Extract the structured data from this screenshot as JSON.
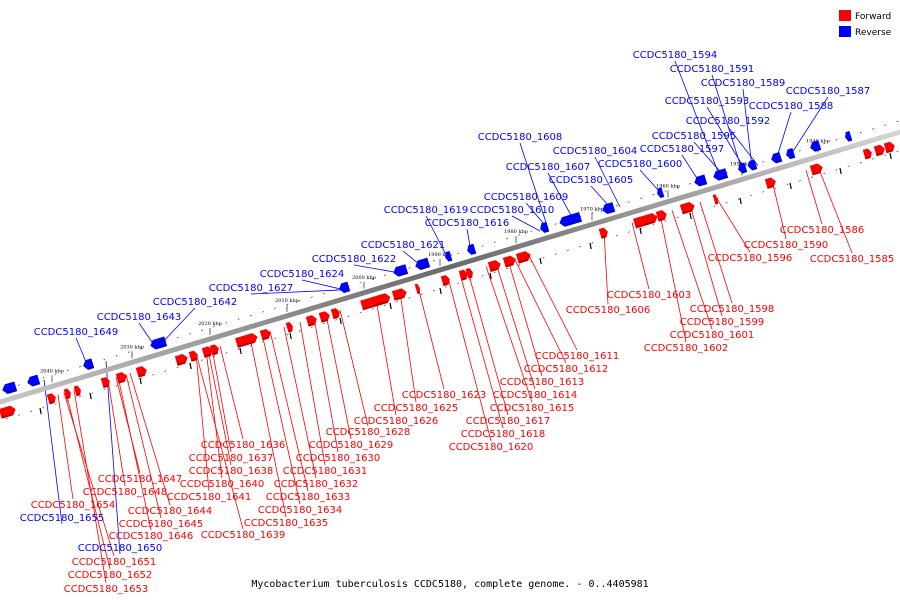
{
  "caption": "Mycobacterium tuberculosis CCDC5180, complete genome. - 0..4405981",
  "legend": {
    "forward": {
      "label": "Forward",
      "color": "#ff0000"
    },
    "reverse": {
      "label": "Reverse",
      "color": "#0000ff"
    }
  },
  "axis": {
    "unit": "kbp",
    "ticks": [
      1940,
      1950,
      1960,
      1970,
      1980,
      1990,
      2000,
      2010,
      2020,
      2030,
      2040
    ]
  },
  "forward_genes": [
    "CCDC5180_1585",
    "CCDC5180_1586",
    "CCDC5180_1590",
    "CCDC5180_1596",
    "CCDC5180_1598",
    "CCDC5180_1599",
    "CCDC5180_1601",
    "CCDC5180_1602",
    "CCDC5180_1603",
    "CCDC5180_1606",
    "CCDC5180_1611",
    "CCDC5180_1612",
    "CCDC5180_1613",
    "CCDC5180_1614",
    "CCDC5180_1615",
    "CCDC5180_1617",
    "CCDC5180_1618",
    "CCDC5180_1620",
    "CCDC5180_1623",
    "CCDC5180_1625",
    "CCDC5180_1626",
    "CCDC5180_1628",
    "CCDC5180_1629",
    "CCDC5180_1630",
    "CCDC5180_1631",
    "CCDC5180_1632",
    "CCDC5180_1633",
    "CCDC5180_1634",
    "CCDC5180_1635",
    "CCDC5180_1636",
    "CCDC5180_1637",
    "CCDC5180_1638",
    "CCDC5180_1640",
    "CCDC5180_1641",
    "CCDC5180_1639",
    "CCDC5180_1647",
    "CCDC5180_1648",
    "CCDC5180_1644",
    "CCDC5180_1645",
    "CCDC5180_1646",
    "CCDC5180_1654",
    "CCDC5180_1651",
    "CCDC5180_1652",
    "CCDC5180_1653"
  ],
  "reverse_genes": [
    "CCDC5180_1594",
    "CCDC5180_1591",
    "CCDC5180_1589",
    "CCDC5180_1587",
    "CCDC5180_1593",
    "CCDC5180_1588",
    "CCDC5180_1592",
    "CCDC5180_1595",
    "CCDC5180_1597",
    "CCDC5180_1608",
    "CCDC5180_1604",
    "CCDC5180_1607",
    "CCDC5180_1600",
    "CCDC5180_1605",
    "CCDC5180_1609",
    "CCDC5180_1619",
    "CCDC5180_1610",
    "CCDC5180_1616",
    "CCDC5180_1621",
    "CCDC5180_1622",
    "CCDC5180_1624",
    "CCDC5180_1627",
    "CCDC5180_1642",
    "CCDC5180_1643",
    "CCDC5180_1649",
    "CCDC5180_1655",
    "CCDC5180_1650"
  ]
}
